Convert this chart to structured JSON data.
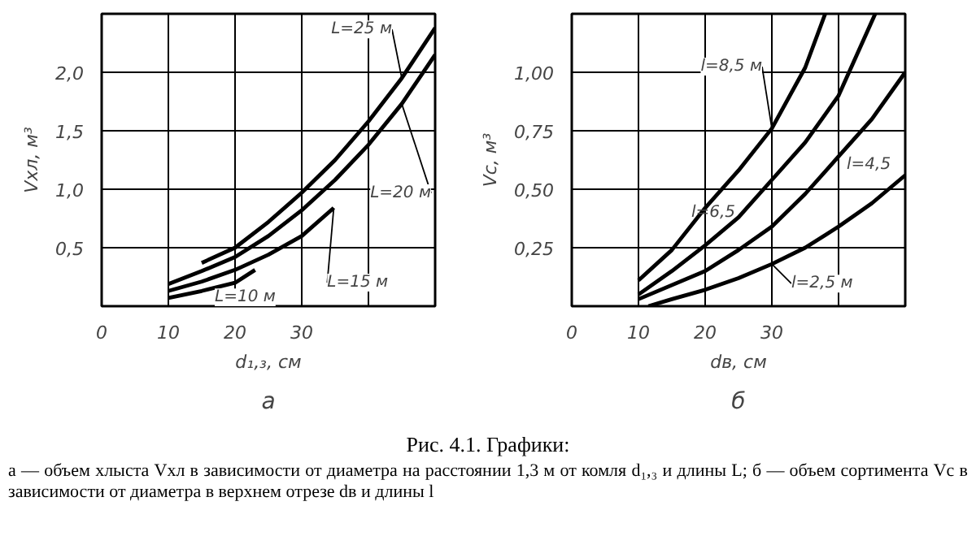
{
  "chart_data": [
    {
      "type": "line",
      "title": "а",
      "xlabel": "d₁,₃, см",
      "ylabel": "Vхл, м³",
      "xlim": [
        0,
        50
      ],
      "ylim": [
        0,
        2.5
      ],
      "xticks": [
        0,
        10,
        20,
        30,
        {
          "value": 40,
          "label": null
        }
      ],
      "yticks": [
        {
          "value": 0.5,
          "label": "0,5"
        },
        {
          "value": 1.0,
          "label": "1,0"
        },
        {
          "value": 1.5,
          "label": "1,5"
        },
        {
          "value": 2.0,
          "label": "2,0"
        }
      ],
      "grid": true,
      "series": [
        {
          "name": "L=25 м",
          "color": "#000000",
          "x": [
            15,
            20,
            25,
            30,
            35,
            40,
            45,
            50
          ],
          "values": [
            0.37,
            0.5,
            0.72,
            0.97,
            1.25,
            1.58,
            1.95,
            2.38
          ]
        },
        {
          "name": "L=20 м",
          "color": "#000000",
          "x": [
            10,
            15,
            20,
            25,
            30,
            35,
            40,
            45,
            50
          ],
          "values": [
            0.19,
            0.3,
            0.42,
            0.6,
            0.82,
            1.08,
            1.38,
            1.73,
            2.15
          ]
        },
        {
          "name": "L=15 м",
          "color": "#000000",
          "x": [
            10,
            15,
            20,
            25,
            30,
            34.8
          ],
          "values": [
            0.13,
            0.21,
            0.31,
            0.44,
            0.6,
            0.84
          ]
        },
        {
          "name": "L=10 м",
          "color": "#000000",
          "x": [
            10,
            15,
            20,
            23
          ],
          "values": [
            0.07,
            0.13,
            0.2,
            0.31
          ]
        }
      ],
      "annotations": [
        "Рис. 4.1. Графики:",
        "а — объем хлыста Vхл в зависимости от диаметра на расстоянии 1,3 м от комля d₁,₃ и длины L; б — объем сортимента Vс в зависимости от диаметра в верхнем отрезе dв и длины l"
      ]
    },
    {
      "type": "line",
      "title": "б",
      "xlabel": "dв, см",
      "ylabel": "Vс, м³",
      "xlim": [
        0,
        50
      ],
      "ylim": [
        0,
        1.25
      ],
      "xticks": [
        0,
        10,
        20,
        30,
        {
          "value": 40,
          "label": null
        }
      ],
      "yticks": [
        {
          "value": 0.25,
          "label": "0,25"
        },
        {
          "value": 0.5,
          "label": "0,50"
        },
        {
          "value": 0.75,
          "label": "0,75"
        },
        {
          "value": 1.0,
          "label": "1,00"
        }
      ],
      "grid": true,
      "series": [
        {
          "name": "l=8,5 м",
          "color": "#000000",
          "x": [
            10,
            15,
            20,
            25,
            30,
            35,
            38
          ],
          "values": [
            0.11,
            0.24,
            0.42,
            0.58,
            0.76,
            1.02,
            1.25
          ]
        },
        {
          "name": "l=6,5",
          "color": "#000000",
          "x": [
            10,
            15,
            20,
            25,
            30,
            35,
            40,
            45.5
          ],
          "values": [
            0.05,
            0.15,
            0.26,
            0.38,
            0.54,
            0.7,
            0.9,
            1.25
          ]
        },
        {
          "name": "l=4,5",
          "color": "#000000",
          "x": [
            10,
            20,
            25,
            30,
            35,
            40,
            45,
            50
          ],
          "values": [
            0.03,
            0.15,
            0.24,
            0.34,
            0.48,
            0.64,
            0.8,
            1.0
          ]
        },
        {
          "name": "l=2,5 м",
          "color": "#000000",
          "x": [
            11.5,
            15,
            20,
            25,
            30,
            35,
            40,
            45,
            50
          ],
          "values": [
            0.0,
            0.03,
            0.07,
            0.12,
            0.18,
            0.25,
            0.34,
            0.44,
            0.56
          ]
        }
      ]
    }
  ]
}
